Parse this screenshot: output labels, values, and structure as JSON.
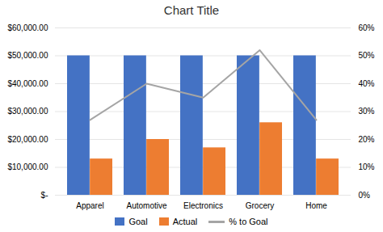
{
  "chart_data": {
    "type": "bar",
    "title": "Chart Title",
    "categories": [
      "Apparel",
      "Automotive",
      "Electronics",
      "Grocery",
      "Home"
    ],
    "series": [
      {
        "name": "Goal",
        "color": "#4472C4",
        "values": [
          50000,
          50000,
          50000,
          50000,
          50000
        ]
      },
      {
        "name": "Actual",
        "color": "#ED7D31",
        "values": [
          13000,
          20000,
          17000,
          26000,
          13000
        ]
      },
      {
        "name": "% to Goal",
        "type": "line",
        "axis": "y2",
        "color": "#A5A5A5",
        "values": [
          0.27,
          0.4,
          0.35,
          0.52,
          0.27
        ]
      }
    ],
    "ylim": [
      0,
      60000
    ],
    "yticks": [
      {
        "value": 0,
        "label": "$-"
      },
      {
        "value": 10000,
        "label": "$10,000.00"
      },
      {
        "value": 20000,
        "label": "$20,000.00"
      },
      {
        "value": 30000,
        "label": "$30,000.00"
      },
      {
        "value": 40000,
        "label": "$40,000.00"
      },
      {
        "value": 50000,
        "label": "$50,000.00"
      },
      {
        "value": 60000,
        "label": "$60,000.00"
      }
    ],
    "y2lim": [
      0,
      0.6
    ],
    "y2ticks": [
      {
        "value": 0,
        "label": "0%"
      },
      {
        "value": 0.1,
        "label": "10%"
      },
      {
        "value": 0.2,
        "label": "20%"
      },
      {
        "value": 0.3,
        "label": "30%"
      },
      {
        "value": 0.4,
        "label": "40%"
      },
      {
        "value": 0.5,
        "label": "50%"
      },
      {
        "value": 0.6,
        "label": "60%"
      }
    ],
    "grid": true,
    "legend": "bottom"
  }
}
